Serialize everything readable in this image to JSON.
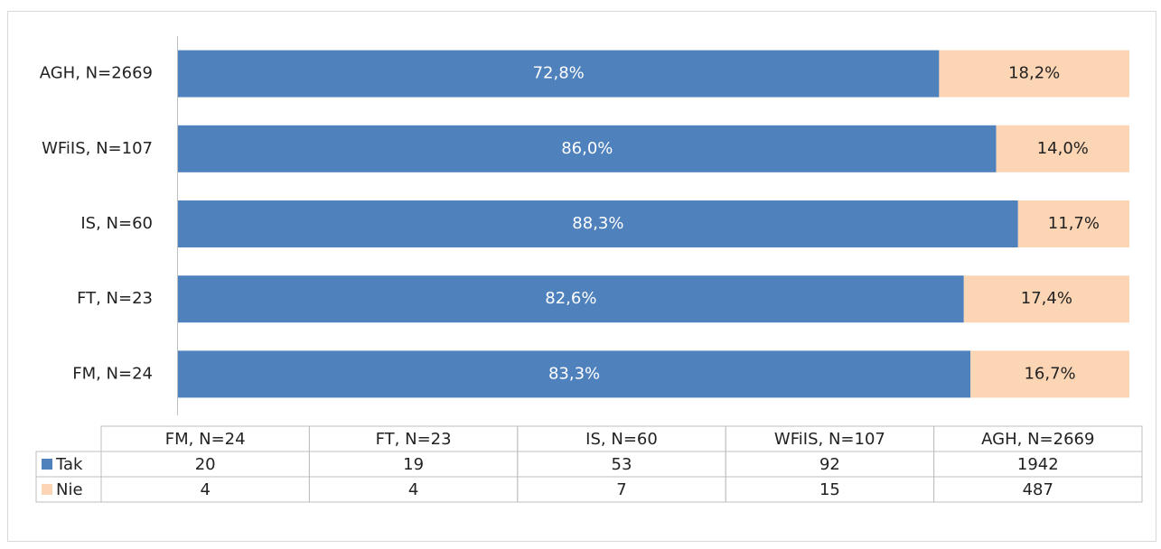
{
  "chart_data": {
    "type": "bar",
    "orientation": "horizontal",
    "stacking": "percent",
    "categories": [
      "FM, N=24",
      "FT, N=23",
      "IS, N=60",
      "WFiIS, N=107",
      "AGH, N=2669"
    ],
    "series": [
      {
        "name": "Tak",
        "color": "#4f81bd",
        "values": [
          83.3,
          82.6,
          88.3,
          86.0,
          72.8
        ],
        "value_labels": [
          "83,3%",
          "82,6%",
          "88,3%",
          "86,0%",
          "72,8%"
        ],
        "counts": [
          20,
          19,
          53,
          92,
          1942
        ]
      },
      {
        "name": "Nie",
        "color": "#fcd5b4",
        "values": [
          16.7,
          17.4,
          11.7,
          14.0,
          18.2
        ],
        "value_labels": [
          "16,7%",
          "17,4%",
          "11,7%",
          "14,0%",
          "18,2%"
        ],
        "counts": [
          4,
          4,
          7,
          15,
          487
        ]
      }
    ]
  }
}
